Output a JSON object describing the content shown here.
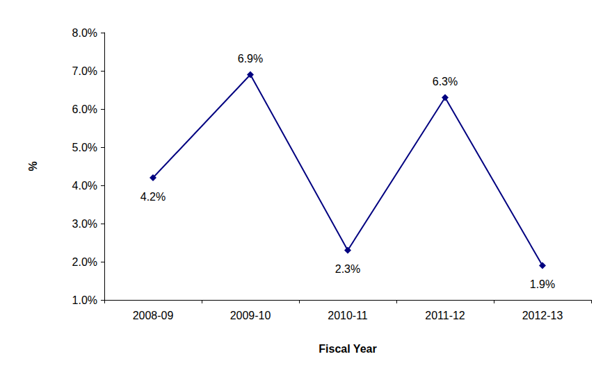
{
  "chart_data": {
    "type": "line",
    "x_label": "Fiscal Year",
    "y_label": "%",
    "categories": [
      "2008-09",
      "2009-10",
      "2010-11",
      "2011-12",
      "2012-13"
    ],
    "values": [
      4.2,
      6.9,
      2.3,
      6.3,
      1.9
    ],
    "value_labels": [
      "4.2%",
      "6.9%",
      "2.3%",
      "6.3%",
      "1.9%"
    ],
    "color": "#000080",
    "marker": "diamond",
    "line_style": "solid",
    "data_labels": true,
    "grid": false,
    "ylim": [
      1,
      8
    ],
    "yticks": [
      {
        "value": 1,
        "label": "1.0%"
      },
      {
        "value": 2,
        "label": "2.0%"
      },
      {
        "value": 3,
        "label": "3.0%"
      },
      {
        "value": 4,
        "label": "4.0%"
      },
      {
        "value": 5,
        "label": "5.0%"
      },
      {
        "value": 6,
        "label": "6.0%"
      },
      {
        "value": 7,
        "label": "7.0%"
      },
      {
        "value": 8,
        "label": "8.0%"
      }
    ]
  }
}
